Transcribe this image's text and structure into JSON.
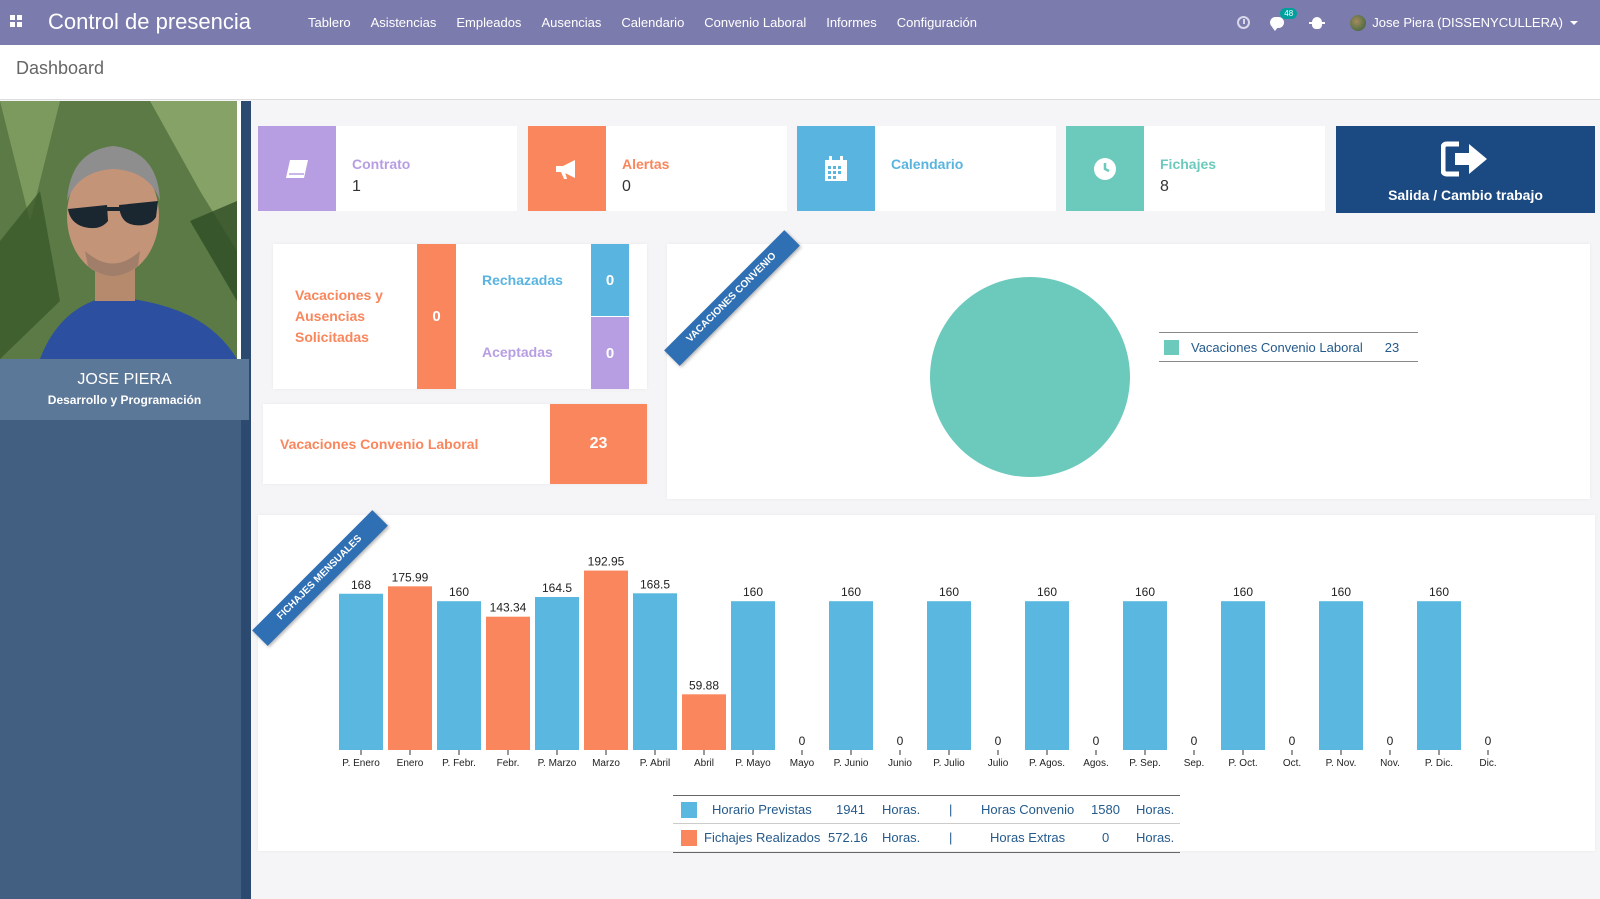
{
  "navbar": {
    "brand": "Control de presencia",
    "menu": [
      "Tablero",
      "Asistencias",
      "Empleados",
      "Ausencias",
      "Calendario",
      "Convenio Laboral",
      "Informes",
      "Configuración"
    ],
    "messages_count": "48",
    "user": "Jose Piera (DISSENYCULLERA)"
  },
  "breadcrumb": "Dashboard",
  "profile": {
    "name": "JOSE PIERA",
    "role": "Desarrollo y Programación"
  },
  "tiles": {
    "contrato": {
      "label": "Contrato",
      "value": "1",
      "color": "#b79ee3"
    },
    "alertas": {
      "label": "Alertas",
      "value": "0",
      "color": "#f9865c"
    },
    "calendario": {
      "label": "Calendario",
      "color": "#5ab4e0"
    },
    "fichajes": {
      "label": "Fichajes",
      "value": "8",
      "color": "#6ccabd"
    },
    "salida": {
      "label": "Salida / Cambio trabajo",
      "color": "#1b4a82"
    }
  },
  "leave": {
    "solicitadas_label": "Vacaciones y Ausencias Solicitadas",
    "solicitadas_value": "0",
    "rechazadas_label": "Rechazadas",
    "rechazadas_value": "0",
    "aceptadas_label": "Aceptadas",
    "aceptadas_value": "0",
    "convenio_label": "Vacaciones Convenio Laboral",
    "convenio_value": "23"
  },
  "ribbons": {
    "pie": "Vacaciones Convenio",
    "bar": "Fichajes Mensuales"
  },
  "colors": {
    "previstas": "#5ab8e0",
    "realizados": "#f9865c",
    "pie": "#6ccabd"
  },
  "chart_data": [
    {
      "type": "pie",
      "slices": [
        {
          "name": "Vacaciones Convenio Laboral",
          "value": 23
        }
      ]
    },
    {
      "type": "bar",
      "categories": [
        "P. Enero",
        "Enero",
        "P. Febr.",
        "Febr.",
        "P. Marzo",
        "Marzo",
        "P. Abril",
        "Abril",
        "P. Mayo",
        "Mayo",
        "P. Junio",
        "Junio",
        "P. Julio",
        "Julio",
        "P. Agos.",
        "Agos.",
        "P. Sep.",
        "Sep.",
        "P. Oct.",
        "Oct.",
        "P. Nov.",
        "Nov.",
        "P. Dic.",
        "Dic."
      ],
      "values": [
        168,
        175.99,
        160,
        143.34,
        164.5,
        192.95,
        168.5,
        59.88,
        160,
        0,
        160,
        0,
        160,
        0,
        160,
        0,
        160,
        0,
        160,
        0,
        160,
        0,
        160,
        0
      ],
      "value_labels": [
        "168",
        "175.99",
        "160",
        "143.34",
        "164.5",
        "192.95",
        "168.5",
        "59.88",
        "160",
        "0",
        "160",
        "0",
        "160",
        "0",
        "160",
        "0",
        "160",
        "0",
        "160",
        "0",
        "160",
        "0",
        "160",
        "0"
      ],
      "ylim": [
        0,
        200
      ]
    }
  ],
  "bar_legend": {
    "previstas_label": "Horario Previstas",
    "previstas_value": "1941",
    "convenio_label": "Horas Convenio",
    "convenio_value": "1580",
    "realizados_label": "Fichajes Realizados",
    "realizados_value": "572.16",
    "extras_label": "Horas Extras",
    "extras_value": "0",
    "unit": "Horas.",
    "sep": "|"
  }
}
